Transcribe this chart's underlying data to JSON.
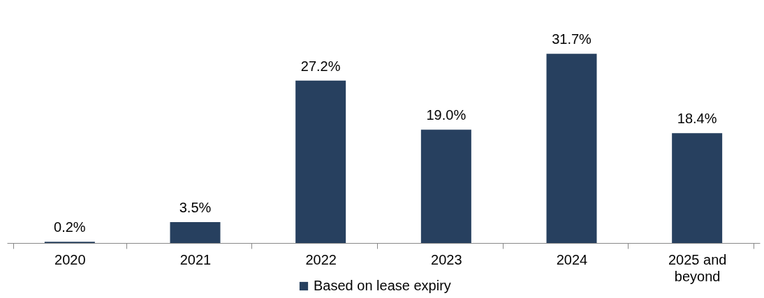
{
  "chart_data": {
    "type": "bar",
    "categories": [
      "2020",
      "2021",
      "2022",
      "2023",
      "2024",
      "2025 and beyond"
    ],
    "series": [
      {
        "name": "Based on lease expiry",
        "color": "#27405f",
        "values": [
          0.2,
          3.5,
          27.2,
          19.0,
          31.7,
          18.4
        ],
        "value_labels": [
          "0.2%",
          "3.5%",
          "27.2%",
          "19.0%",
          "31.7%",
          "18.4%"
        ]
      }
    ],
    "legend": "bottom",
    "grid": false
  }
}
